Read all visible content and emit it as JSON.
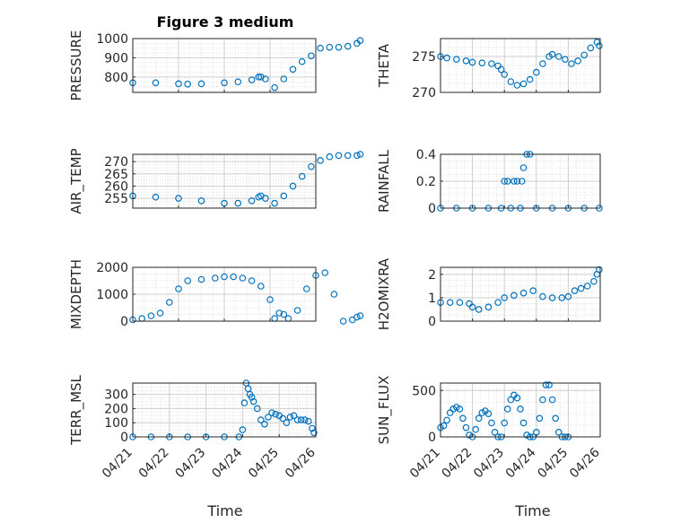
{
  "figure": {
    "title": "Figure 3 medium",
    "xlabel": "Time",
    "marker_color": "#0072BD"
  },
  "chart_data": [
    {
      "type": "scatter",
      "ylabel": "PRESSURE",
      "ylim": [
        720,
        1000
      ],
      "yticks": [
        800,
        900,
        1000
      ],
      "xlim": [
        "04/21",
        "04/25"
      ],
      "xticks": [
        "04/21",
        "04/22",
        "04/23",
        "04/24",
        "04/25"
      ],
      "show_xticklabels": false,
      "grid": true,
      "minor_grid": true,
      "x": [
        0,
        0.5,
        1,
        1.2,
        1.5,
        2,
        2.3,
        2.6,
        2.75,
        2.8,
        2.9,
        3.1,
        3.3,
        3.5,
        3.7,
        3.9,
        4.1,
        4.3,
        4.5,
        4.7,
        4.9,
        4.97
      ],
      "y": [
        770,
        770,
        765,
        763,
        765,
        770,
        775,
        785,
        800,
        800,
        790,
        745,
        790,
        840,
        880,
        910,
        950,
        955,
        955,
        960,
        975,
        990
      ]
    },
    {
      "type": "scatter",
      "ylabel": "THETA",
      "ylim": [
        270,
        277.5
      ],
      "yticks": [
        270,
        275
      ],
      "xlim": [
        "04/21",
        "04/26"
      ],
      "xticks": [
        "04/21",
        "04/22",
        "04/23",
        "04/24",
        "04/25",
        "04/26"
      ],
      "show_xticklabels": false,
      "grid": true,
      "minor_grid": true,
      "x": [
        0,
        0.2,
        0.5,
        0.8,
        1,
        1.3,
        1.6,
        1.8,
        1.9,
        2,
        2.2,
        2.4,
        2.6,
        2.8,
        3,
        3.2,
        3.4,
        3.5,
        3.7,
        3.9,
        4.1,
        4.3,
        4.5,
        4.7,
        4.9,
        4.97
      ],
      "y": [
        275,
        274.8,
        274.6,
        274.4,
        274.2,
        274.1,
        274,
        273.7,
        273.2,
        272.5,
        271.5,
        271,
        271.2,
        271.8,
        272.8,
        274,
        275,
        275.3,
        275,
        274.6,
        274,
        274.4,
        275.2,
        276.2,
        277,
        276.5
      ]
    },
    {
      "type": "scatter",
      "ylabel": "AIR_TEMP",
      "ylim": [
        251,
        273
      ],
      "yticks": [
        255,
        260,
        265,
        270
      ],
      "xlim": [
        "04/21",
        "04/25"
      ],
      "xticks": [
        "04/21",
        "04/22",
        "04/23",
        "04/24",
        "04/25"
      ],
      "show_xticklabels": false,
      "grid": true,
      "minor_grid": true,
      "x": [
        0,
        0.5,
        1,
        1.5,
        2,
        2.3,
        2.6,
        2.75,
        2.8,
        2.9,
        3.1,
        3.3,
        3.5,
        3.7,
        3.9,
        4.1,
        4.3,
        4.5,
        4.7,
        4.9,
        4.97
      ],
      "y": [
        256,
        255.5,
        255,
        254,
        253,
        253,
        254,
        255.5,
        256,
        255,
        253,
        256,
        260,
        264,
        268,
        270.5,
        272,
        272.5,
        272.5,
        272.5,
        273
      ]
    },
    {
      "type": "scatter",
      "ylabel": "RAINFALL",
      "ylim": [
        0,
        0.4
      ],
      "yticks": [
        0,
        0.2,
        0.4
      ],
      "xlim": [
        "04/21",
        "04/26"
      ],
      "xticks": [
        "04/21",
        "04/22",
        "04/23",
        "04/24",
        "04/25",
        "04/26"
      ],
      "show_xticklabels": false,
      "grid": true,
      "minor_grid": true,
      "x": [
        0,
        0.5,
        1,
        1.5,
        1.9,
        2,
        2.1,
        2.2,
        2.3,
        2.4,
        2.5,
        2.55,
        2.6,
        2.7,
        2.8,
        3,
        3.5,
        4,
        4.5,
        4.97
      ],
      "y": [
        0,
        0,
        0,
        0,
        0,
        0.2,
        0.2,
        0,
        0.2,
        0.2,
        0,
        0.2,
        0.3,
        0.4,
        0.4,
        0,
        0,
        0,
        0,
        0
      ]
    },
    {
      "type": "scatter",
      "ylabel": "MIXDEPTH",
      "ylim": [
        0,
        2000
      ],
      "yticks": [
        0,
        1000,
        2000
      ],
      "xlim": [
        "04/21",
        "04/25"
      ],
      "xticks": [
        "04/21",
        "04/22",
        "04/23",
        "04/24",
        "04/25"
      ],
      "show_xticklabels": false,
      "grid": true,
      "minor_grid": true,
      "x": [
        0,
        0.2,
        0.4,
        0.6,
        0.8,
        1,
        1.2,
        1.5,
        1.8,
        2,
        2.2,
        2.4,
        2.6,
        2.8,
        3,
        3.1,
        3.2,
        3.3,
        3.4,
        3.6,
        3.8,
        4,
        4.2,
        4.4,
        4.6,
        4.8,
        4.9,
        4.97
      ],
      "y": [
        50,
        100,
        200,
        300,
        700,
        1200,
        1500,
        1550,
        1600,
        1650,
        1650,
        1600,
        1500,
        1300,
        800,
        100,
        300,
        250,
        100,
        400,
        1200,
        1700,
        1800,
        1000,
        0,
        50,
        150,
        200
      ]
    },
    {
      "type": "scatter",
      "ylabel": "H2OMIXRA",
      "ylim": [
        0,
        2.3
      ],
      "yticks": [
        0,
        1,
        2
      ],
      "xlim": [
        "04/21",
        "04/26"
      ],
      "xticks": [
        "04/21",
        "04/22",
        "04/23",
        "04/24",
        "04/25",
        "04/26"
      ],
      "show_xticklabels": false,
      "grid": true,
      "minor_grid": true,
      "x": [
        0,
        0.3,
        0.6,
        0.9,
        1,
        1.2,
        1.5,
        1.8,
        2,
        2.3,
        2.6,
        2.9,
        3.2,
        3.5,
        3.8,
        4,
        4.2,
        4.4,
        4.6,
        4.8,
        4.9,
        4.97
      ],
      "y": [
        0.8,
        0.8,
        0.8,
        0.75,
        0.6,
        0.5,
        0.6,
        0.8,
        1,
        1.1,
        1.2,
        1.3,
        1.05,
        1,
        1,
        1.05,
        1.3,
        1.4,
        1.5,
        1.7,
        2,
        2.2
      ]
    },
    {
      "type": "scatter",
      "ylabel": "TERR_MSL",
      "ylim": [
        0,
        380
      ],
      "yticks": [
        0,
        100,
        200,
        300
      ],
      "xlim": [
        "04/21",
        "04/26"
      ],
      "xticks": [
        "04/21",
        "04/22",
        "04/23",
        "04/24",
        "04/25",
        "04/26"
      ],
      "xticklabels": [
        "04/21",
        "04/22",
        "04/23",
        "04/24",
        "04/25",
        "04/26"
      ],
      "show_xticklabels": true,
      "grid": true,
      "minor_grid": true,
      "x": [
        0,
        0.5,
        1,
        1.5,
        2,
        2.5,
        2.9,
        3,
        3.05,
        3.1,
        3.15,
        3.2,
        3.25,
        3.3,
        3.4,
        3.5,
        3.6,
        3.7,
        3.8,
        3.9,
        4,
        4.1,
        4.2,
        4.3,
        4.4,
        4.5,
        4.6,
        4.7,
        4.8,
        4.9,
        4.95
      ],
      "y": [
        0,
        0,
        0,
        0,
        0,
        0,
        0,
        50,
        240,
        380,
        340,
        300,
        280,
        250,
        200,
        120,
        90,
        140,
        170,
        160,
        150,
        130,
        100,
        140,
        150,
        120,
        120,
        120,
        110,
        60,
        30
      ]
    },
    {
      "type": "scatter",
      "ylabel": "SUN_FLUX",
      "ylim": [
        0,
        580
      ],
      "yticks": [
        0,
        500
      ],
      "xlim": [
        "04/21",
        "04/26"
      ],
      "xticks": [
        "04/21",
        "04/22",
        "04/23",
        "04/24",
        "04/25",
        "04/26"
      ],
      "xticklabels": [
        "04/21",
        "04/22",
        "04/23",
        "04/24",
        "04/25",
        "04/26"
      ],
      "show_xticklabels": true,
      "grid": true,
      "minor_grid": true,
      "x": [
        0,
        0.1,
        0.2,
        0.3,
        0.4,
        0.5,
        0.6,
        0.7,
        0.8,
        0.9,
        1,
        1.1,
        1.2,
        1.3,
        1.4,
        1.5,
        1.6,
        1.7,
        1.8,
        1.9,
        2,
        2.1,
        2.2,
        2.3,
        2.4,
        2.5,
        2.6,
        2.7,
        2.8,
        2.9,
        3,
        3.1,
        3.2,
        3.3,
        3.4,
        3.5,
        3.6,
        3.7,
        3.8,
        3.9,
        4
      ],
      "y": [
        100,
        120,
        180,
        260,
        300,
        320,
        300,
        200,
        100,
        20,
        0,
        80,
        200,
        260,
        280,
        250,
        150,
        50,
        0,
        0,
        150,
        300,
        400,
        450,
        420,
        300,
        150,
        20,
        0,
        0,
        50,
        200,
        400,
        560,
        560,
        400,
        200,
        50,
        0,
        0,
        0
      ]
    }
  ]
}
